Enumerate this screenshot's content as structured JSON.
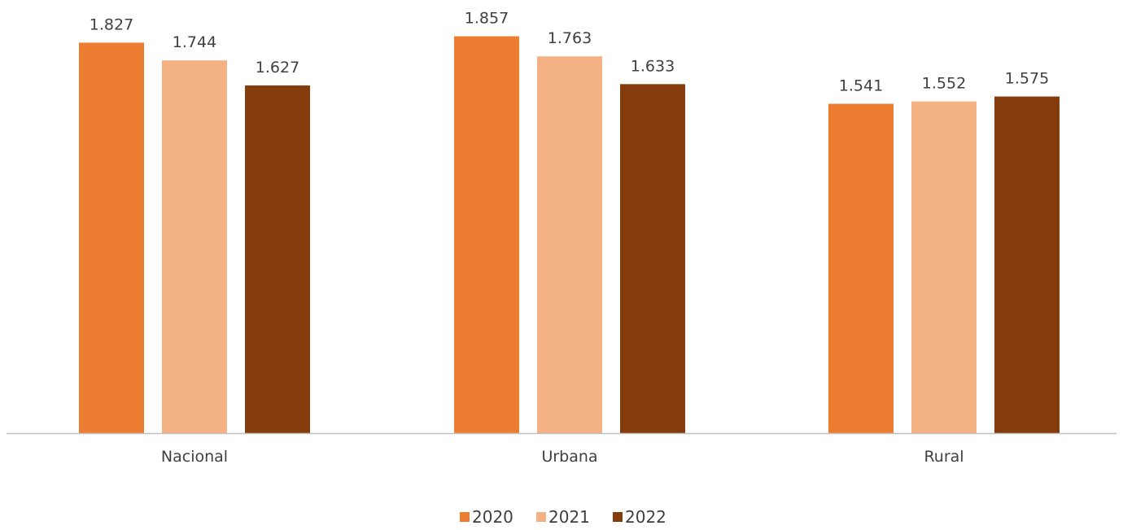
{
  "chart_data": {
    "type": "bar",
    "categories": [
      "Nacional",
      "Urbana",
      "Rural"
    ],
    "series": [
      {
        "name": "2020",
        "values": [
          1.827,
          1.857,
          1.541
        ],
        "labels": [
          "1.827",
          "1.857",
          "1.541"
        ],
        "color": "#ED7D31"
      },
      {
        "name": "2021",
        "values": [
          1.744,
          1.763,
          1.552
        ],
        "labels": [
          "1.744",
          "1.763",
          "1.552"
        ],
        "color": "#F4B183"
      },
      {
        "name": "2022",
        "values": [
          1.627,
          1.633,
          1.575
        ],
        "labels": [
          "1.627",
          "1.633",
          "1.575"
        ],
        "color": "#843C0C"
      }
    ],
    "ylim": [
      0,
      2.0
    ],
    "grid": false,
    "legend": "bottom",
    "axis_color": "#BFBFBF"
  }
}
